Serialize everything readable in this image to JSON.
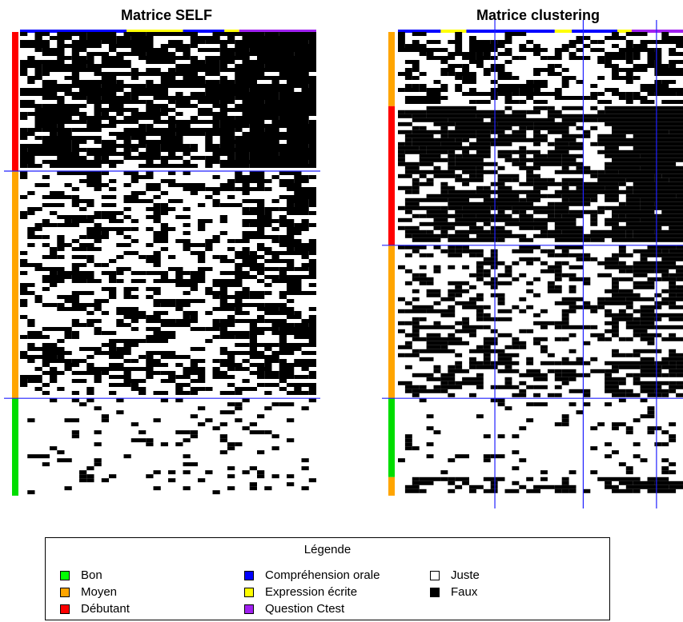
{
  "chart_data": [
    {
      "type": "heatmap",
      "title": "Matrice SELF",
      "cell_values": [
        "Juste",
        "Faux"
      ],
      "row_groups": [
        {
          "level": "Débutant",
          "color": "#ff0000",
          "share": 0.3
        },
        {
          "level": "Moyen",
          "color": "#ffa500",
          "share": 0.49
        },
        {
          "level": "Bon",
          "color": "#00dd00",
          "share": 0.21
        }
      ],
      "column_groups": [
        {
          "type": "Compréhension orale",
          "color": "#0000ff",
          "share": 0.36
        },
        {
          "type": "Expression écrite",
          "color": "#ffff00",
          "share": 0.19
        },
        {
          "type": "Compréhension orale",
          "color": "#0000ff",
          "share": 0.14
        },
        {
          "type": "Expression écrite",
          "color": "#ffff00",
          "share": 0.05
        },
        {
          "type": "Question Ctest",
          "color": "#a020f0",
          "share": 0.26
        }
      ],
      "black_density_by_group": [
        0.62,
        0.36,
        0.09
      ]
    },
    {
      "type": "heatmap",
      "title": "Matrice clustering",
      "cell_values": [
        "Juste",
        "Faux"
      ],
      "row_groups": [
        {
          "level": "Moyen",
          "color": "#ffa500",
          "share": 0.16
        },
        {
          "level": "Débutant",
          "color": "#ff0000",
          "share": 0.3
        },
        {
          "level": "Moyen",
          "color": "#ffa500",
          "share": 0.33
        },
        {
          "level": "Bon",
          "color": "#00dd00",
          "share": 0.17
        },
        {
          "level": "Moyen",
          "color": "#ffa500",
          "share": 0.04
        }
      ],
      "column_groups": [
        {
          "type": "Compréhension orale",
          "color": "#0000ff",
          "share": 0.15
        },
        {
          "type": "Expression écrite",
          "color": "#ffff00",
          "share": 0.09
        },
        {
          "type": "Compréhension orale",
          "color": "#0000ff",
          "share": 0.31
        },
        {
          "type": "Expression écrite",
          "color": "#ffff00",
          "share": 0.06
        },
        {
          "type": "Compréhension orale",
          "color": "#0000ff",
          "share": 0.16
        },
        {
          "type": "Expression écrite",
          "color": "#ffff00",
          "share": 0.05
        },
        {
          "type": "Question Ctest",
          "color": "#a020f0",
          "share": 0.18
        }
      ],
      "black_density_by_group": [
        0.6,
        0.35,
        0.1
      ]
    }
  ],
  "legend": {
    "title": "Légende",
    "columns": [
      [
        {
          "label": "Bon",
          "color": "#00ff00",
          "icon": "green-square"
        },
        {
          "label": "Moyen",
          "color": "#ffa500",
          "icon": "orange-square"
        },
        {
          "label": "Débutant",
          "color": "#ff0000",
          "icon": "red-square"
        }
      ],
      [
        {
          "label": "Compréhension orale",
          "color": "#0000ff",
          "icon": "blue-square"
        },
        {
          "label": "Expression écrite",
          "color": "#ffff00",
          "icon": "yellow-square"
        },
        {
          "label": "Question Ctest",
          "color": "#a020f0",
          "icon": "purple-square"
        }
      ],
      [
        {
          "label": "Juste",
          "color": "#ffffff",
          "icon": "white-square"
        },
        {
          "label": "Faux",
          "color": "#000000",
          "icon": "black-square"
        }
      ]
    ]
  }
}
